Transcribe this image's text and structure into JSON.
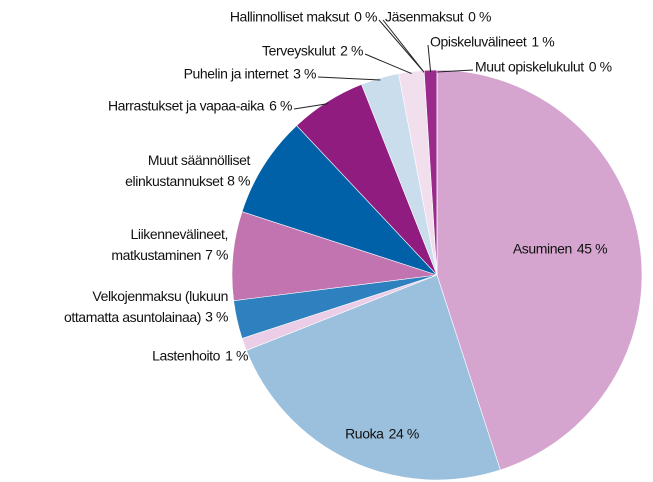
{
  "chart_data": {
    "type": "pie",
    "categories": [
      "Asuminen",
      "Ruoka",
      "Lastenhoito",
      "Velkojenmaksu (lukuun ottamatta asuntolainaa)",
      "Liikennevälineet, matkustaminen",
      "Muut säännölliset elinkustannukset",
      "Harrastukset ja vapaa-aika",
      "Puhelin ja internet",
      "Terveyskulut",
      "Hallinnolliset maksut",
      "Jäsenmaksut",
      "Opiskeluvälineet",
      "Muut opiskelukulut"
    ],
    "values": [
      45,
      24,
      1,
      3,
      7,
      8,
      6,
      3,
      2,
      0,
      0,
      1,
      0
    ],
    "value_labels": [
      "45 %",
      "24 %",
      "1 %",
      "3 %",
      "7 %",
      "8 %",
      "6 %",
      "3 %",
      "2 %",
      "0 %",
      "0 %",
      "1 %",
      "0 %"
    ],
    "colors": [
      "#d5a5cf",
      "#9bc0dd",
      "#ebcde7",
      "#2f80bf",
      "#c274b1",
      "#0061a9",
      "#8f1c7e",
      "#c9dded",
      "#f2dfee",
      "#2f80bf",
      "#a0307f",
      "#9a2a8c",
      "#333333"
    ]
  }
}
